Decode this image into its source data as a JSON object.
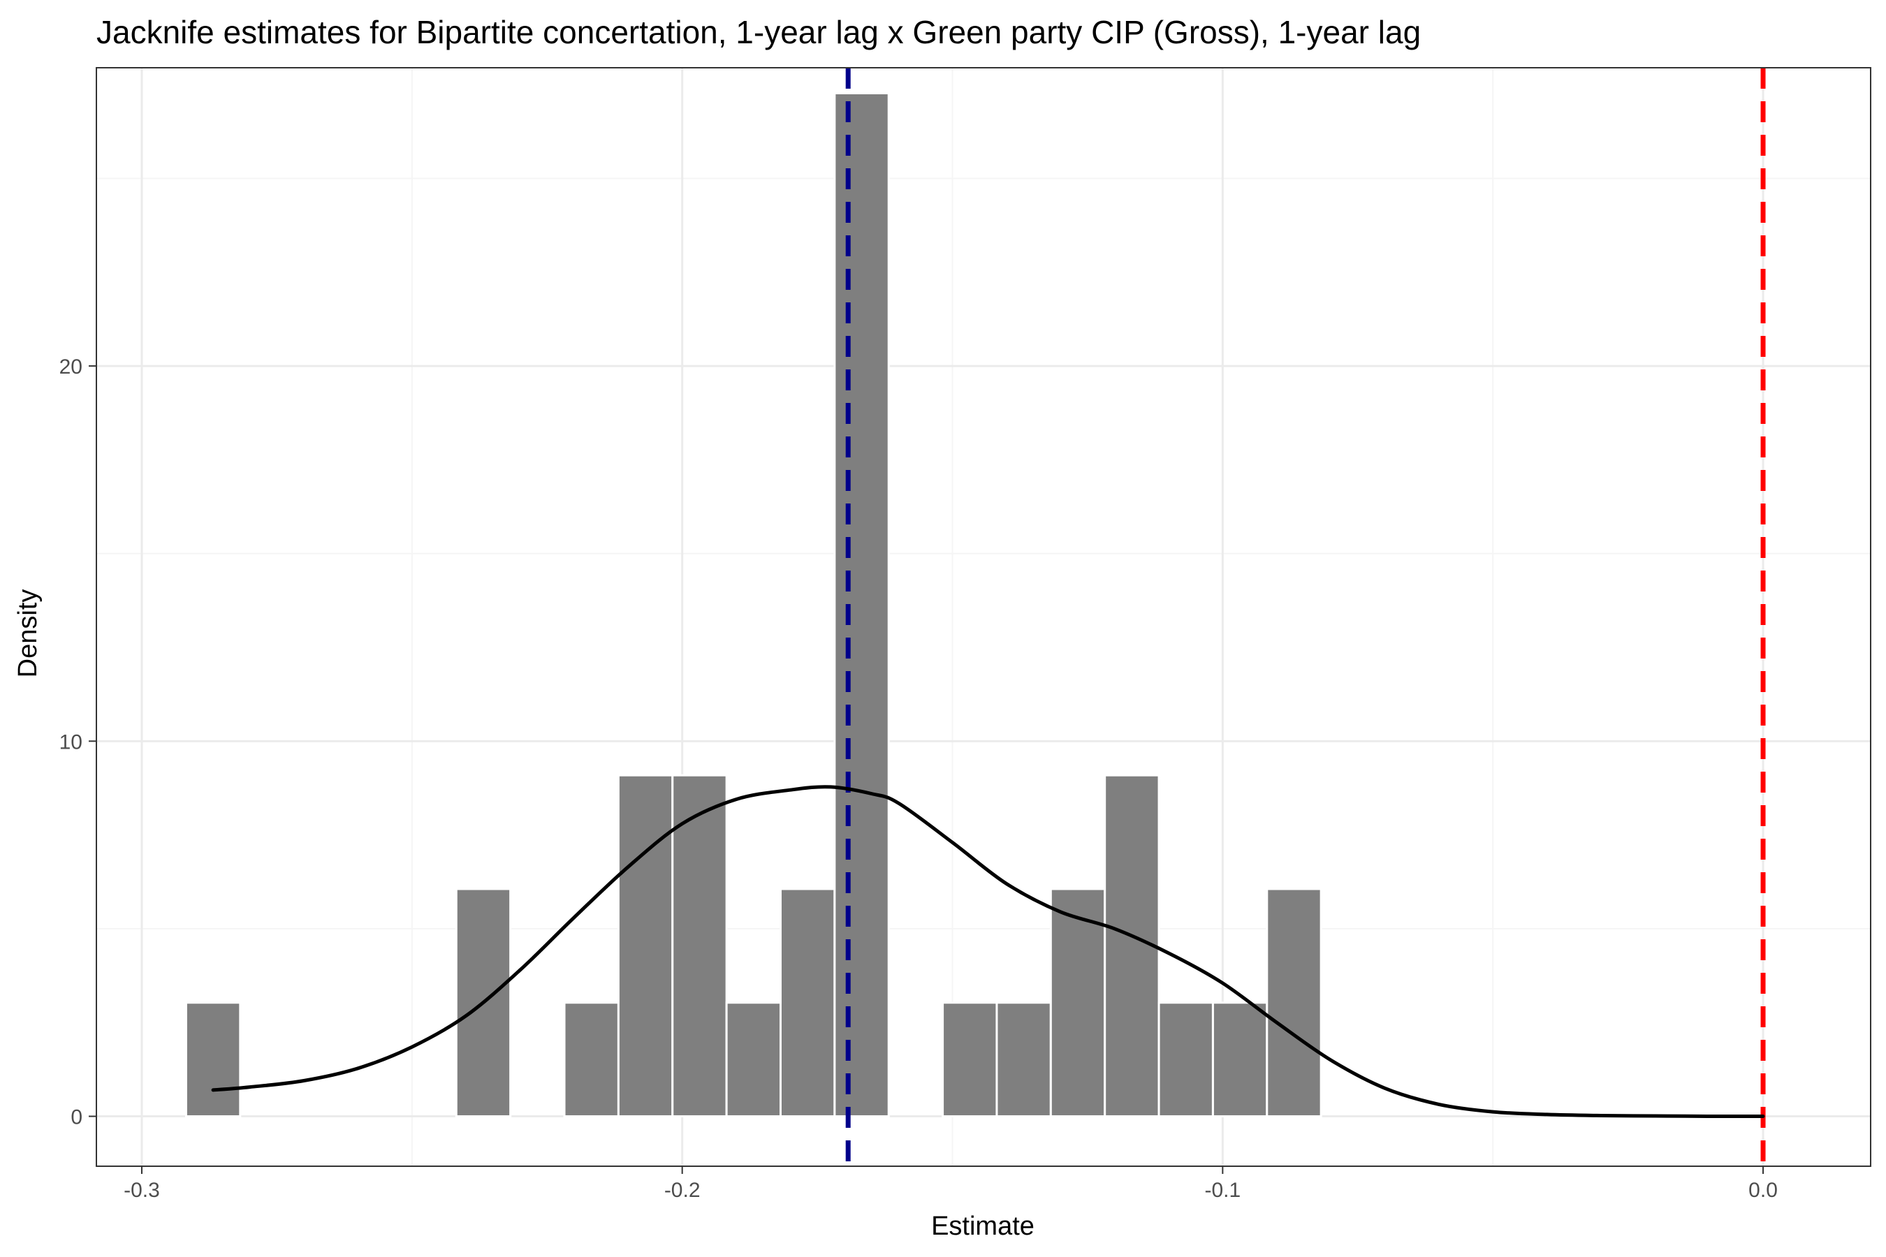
{
  "chart_data": {
    "type": "bar",
    "title": "Jacknife estimates for Bipartite concertation, 1-year lag x Green party CIP (Gross), 1-year lag",
    "xlabel": "Estimate",
    "ylabel": "Density",
    "xlim": [
      -0.3084,
      0.0199
    ],
    "ylim": [
      -1.33,
      27.95
    ],
    "x_ticks": [
      -0.3,
      -0.2,
      -0.1,
      0.0
    ],
    "x_tick_labels": [
      "-0.3",
      "-0.2",
      "-0.1",
      "0.0"
    ],
    "y_ticks": [
      0,
      10,
      20
    ],
    "y_tick_labels": [
      "0",
      "10",
      "20"
    ],
    "grid": true,
    "legend": "none",
    "bin_width": 0.01,
    "bins": [
      {
        "x0": -0.2918,
        "x1": -0.2818,
        "density": 3.03
      },
      {
        "x0": -0.2418,
        "x1": -0.2318,
        "density": 6.06
      },
      {
        "x0": -0.2218,
        "x1": -0.2118,
        "density": 3.03
      },
      {
        "x0": -0.2118,
        "x1": -0.2018,
        "density": 9.09
      },
      {
        "x0": -0.2018,
        "x1": -0.1918,
        "density": 9.09
      },
      {
        "x0": -0.1918,
        "x1": -0.1818,
        "density": 3.03
      },
      {
        "x0": -0.1818,
        "x1": -0.1718,
        "density": 6.06
      },
      {
        "x0": -0.1718,
        "x1": -0.1618,
        "density": 27.27
      },
      {
        "x0": -0.1518,
        "x1": -0.1418,
        "density": 3.03
      },
      {
        "x0": -0.1418,
        "x1": -0.1318,
        "density": 3.03
      },
      {
        "x0": -0.1318,
        "x1": -0.1218,
        "density": 6.06
      },
      {
        "x0": -0.1218,
        "x1": -0.1118,
        "density": 9.09
      },
      {
        "x0": -0.1118,
        "x1": -0.1018,
        "density": 3.03
      },
      {
        "x0": -0.1018,
        "x1": -0.0918,
        "density": 3.03
      },
      {
        "x0": -0.0918,
        "x1": -0.0818,
        "density": 6.06
      }
    ],
    "density_curve": {
      "x": [
        -0.2868,
        -0.28,
        -0.27,
        -0.26,
        -0.25,
        -0.24,
        -0.23,
        -0.22,
        -0.21,
        -0.2,
        -0.19,
        -0.18,
        -0.1725,
        -0.165,
        -0.16,
        -0.15,
        -0.14,
        -0.13,
        -0.12,
        -0.11,
        -0.1,
        -0.09,
        -0.08,
        -0.07,
        -0.06,
        -0.05,
        -0.04,
        -0.03,
        -0.02,
        -0.01,
        0.0
      ],
      "y": [
        0.7,
        0.78,
        0.95,
        1.28,
        1.85,
        2.68,
        3.9,
        5.3,
        6.65,
        7.8,
        8.45,
        8.7,
        8.78,
        8.6,
        8.35,
        7.3,
        6.2,
        5.45,
        5.0,
        4.35,
        3.55,
        2.5,
        1.5,
        0.75,
        0.32,
        0.12,
        0.05,
        0.02,
        0.01,
        0.0,
        0.0
      ]
    },
    "reference_lines": [
      {
        "x": -0.1693,
        "color": "#00008b",
        "style": "dashed"
      },
      {
        "x": 0.0,
        "color": "#ff0000",
        "style": "dashed"
      }
    ],
    "colors": {
      "bar_fill": "#7f7f7f",
      "bar_stroke": "#ffffff",
      "curve": "#000000",
      "grid_major": "#ebebeb",
      "grid_minor": "#f5f5f5",
      "panel_border": "#333333"
    }
  }
}
